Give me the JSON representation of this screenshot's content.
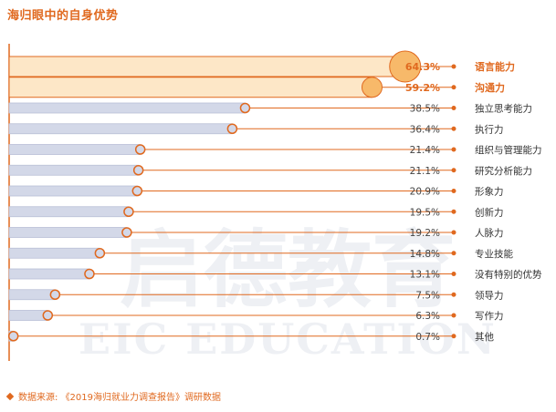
{
  "title": "海归眼中的自身优势",
  "source": {
    "label": "数据来源:",
    "text": "《2019海归就业力调查报告》调研数据"
  },
  "watermark": {
    "chinese": "启德教育",
    "english": "EIC EDUCATION"
  },
  "colors": {
    "accent": "#e0691f",
    "highlight_fill": "#fde7c7",
    "highlight_dot": "#f7b96a",
    "bar_fill": "#d3d8e8",
    "bar_stroke": "#b9bfd6",
    "text": "#333333"
  },
  "chart_data": {
    "type": "bar",
    "orientation": "horizontal",
    "categories": [
      "语言能力",
      "沟通力",
      "独立思考能力",
      "执行力",
      "组织与管理能力",
      "研究分析能力",
      "形象力",
      "创新力",
      "人脉力",
      "专业技能",
      "没有特别的优势",
      "领导力",
      "写作力",
      "其他"
    ],
    "values": [
      64.3,
      59.2,
      38.5,
      36.4,
      21.4,
      21.1,
      20.9,
      19.5,
      19.2,
      14.8,
      13.1,
      7.5,
      6.3,
      0.7
    ],
    "value_labels": [
      "64.3%",
      "59.2%",
      "38.5%",
      "36.4%",
      "21.4%",
      "21.1%",
      "20.9%",
      "19.5%",
      "19.2%",
      "14.8%",
      "13.1%",
      "7.5%",
      "6.3%",
      "0.7%"
    ],
    "highlighted": [
      "语言能力",
      "沟通力"
    ],
    "unit": "%",
    "xlim": [
      0,
      70
    ]
  }
}
